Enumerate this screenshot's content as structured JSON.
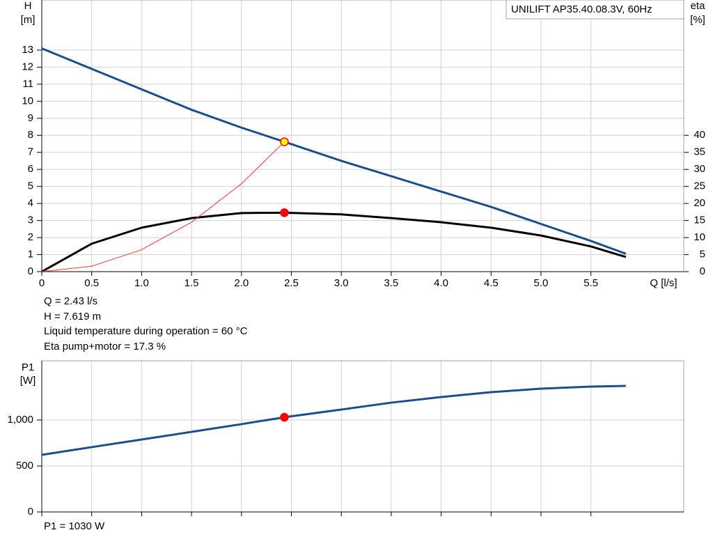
{
  "chart_data": [
    {
      "type": "line",
      "title": "UNILIFT AP35.40.08.3V, 60Hz",
      "ylabel": "H",
      "ylabel_unit": "[m]",
      "y2label": "eta",
      "y2label_unit": "[%]",
      "xlabel": "Q [l/s]",
      "xlim": [
        0,
        6.43
      ],
      "xticks": [
        0,
        0.5,
        {
          "value": 1,
          "label": "1.0"
        },
        1.5,
        {
          "value": 2,
          "label": "2.0"
        },
        2.5,
        {
          "value": 3,
          "label": "3.0"
        },
        3.5,
        {
          "value": 4,
          "label": "4.0"
        },
        4.5,
        {
          "value": 5,
          "label": "5.0"
        },
        5.5
      ],
      "show_xtick_labels": true,
      "ylim": [
        0,
        15.94
      ],
      "yticks": [
        0,
        1,
        2,
        3,
        4,
        5,
        6,
        7,
        8,
        9,
        10,
        11,
        12,
        13
      ],
      "y2lim": [
        0,
        79.7
      ],
      "y2ticks": [
        0,
        5,
        10,
        15,
        20,
        25,
        30,
        35,
        40
      ],
      "grid": true,
      "series": [
        {
          "color": "#1b4f8c",
          "width": 3,
          "x": [
            0,
            0.5,
            1,
            1.5,
            2,
            2.43,
            3,
            3.5,
            4,
            4.5,
            5,
            5.5,
            5.85
          ],
          "values": [
            13.1,
            11.9,
            10.7,
            9.5,
            8.45,
            7.62,
            6.5,
            5.6,
            4.7,
            3.8,
            2.8,
            1.8,
            1.05
          ]
        },
        {
          "color": "#000000",
          "width": 3,
          "axis": "y2",
          "x": [
            0,
            0.5,
            1,
            1.5,
            2,
            2.43,
            3,
            3.5,
            4,
            4.5,
            5,
            5.5,
            5.85
          ],
          "values": [
            0,
            8.2,
            12.9,
            15.7,
            17.2,
            17.3,
            16.8,
            15.7,
            14.5,
            12.9,
            10.6,
            7.4,
            4.3
          ]
        },
        {
          "color": "#ff3030",
          "width": 1,
          "x": [
            0,
            0.5,
            1,
            1.5,
            2,
            2.43
          ],
          "values": [
            0,
            0.32,
            1.29,
            2.9,
            5.16,
            7.62
          ]
        }
      ],
      "points": [
        {
          "x": 2.43,
          "y": 17.3,
          "axis": "y2",
          "color": "#ff0000"
        },
        {
          "x": 2.43,
          "y": 7.619,
          "color": "#ffff00"
        }
      ],
      "annotations": [
        "Q = 2.43 l/s",
        "H = 7.619 m",
        "Liquid temperature during operation = 60 °C",
        "Eta pump+motor = 17.3 %"
      ]
    },
    {
      "type": "line",
      "ylabel": "P1",
      "ylabel_unit": "[W]",
      "xlim": [
        0,
        6.43
      ],
      "xticks": [
        0,
        0.5,
        1,
        1.5,
        2,
        2.5,
        3,
        3.5,
        4,
        4.5,
        5,
        5.5
      ],
      "show_xtick_labels": false,
      "ylim": [
        0,
        1644
      ],
      "yticks": [
        0,
        500,
        {
          "value": 1000,
          "label": "1,000"
        }
      ],
      "grid": true,
      "series": [
        {
          "color": "#1b4f8c",
          "width": 3,
          "x": [
            0,
            0.5,
            1,
            1.5,
            2,
            2.43,
            3,
            3.5,
            4,
            4.5,
            5,
            5.5,
            5.85
          ],
          "values": [
            621,
            705,
            788,
            871,
            955,
            1030,
            1114,
            1189,
            1250,
            1303,
            1341,
            1364,
            1371
          ]
        }
      ],
      "points": [
        {
          "x": 2.43,
          "y": 1030,
          "color": "#ff0000"
        }
      ],
      "annotations": [
        "P1 = 1030 W"
      ]
    }
  ]
}
